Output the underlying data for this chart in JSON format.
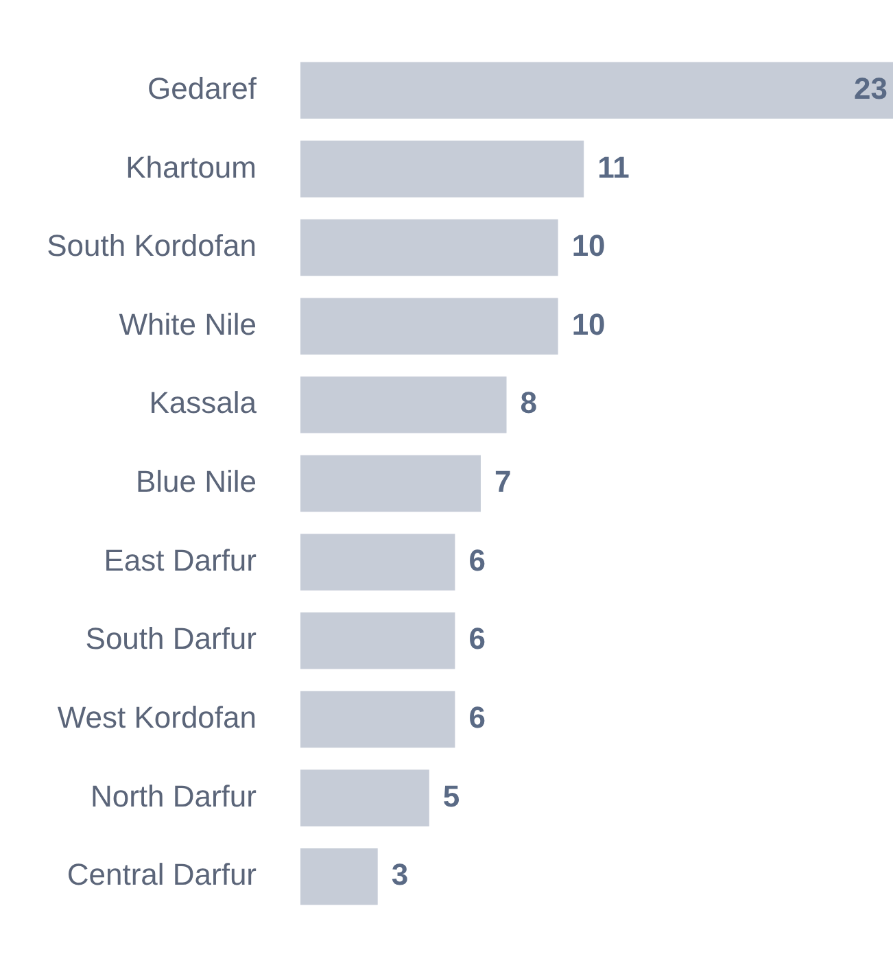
{
  "chart_data": {
    "type": "bar",
    "orientation": "horizontal",
    "categories": [
      "Gedaref",
      "Khartoum",
      "South Kordofan",
      "White Nile",
      "Kassala",
      "Blue Nile",
      "East Darfur",
      "South Darfur",
      "West Kordofan",
      "North Darfur",
      "Central Darfur"
    ],
    "values": [
      23,
      11,
      10,
      10,
      8,
      7,
      6,
      6,
      6,
      5,
      3
    ],
    "color": "#c6ccd7",
    "xlim": [
      0,
      23
    ],
    "data_labels": true
  }
}
